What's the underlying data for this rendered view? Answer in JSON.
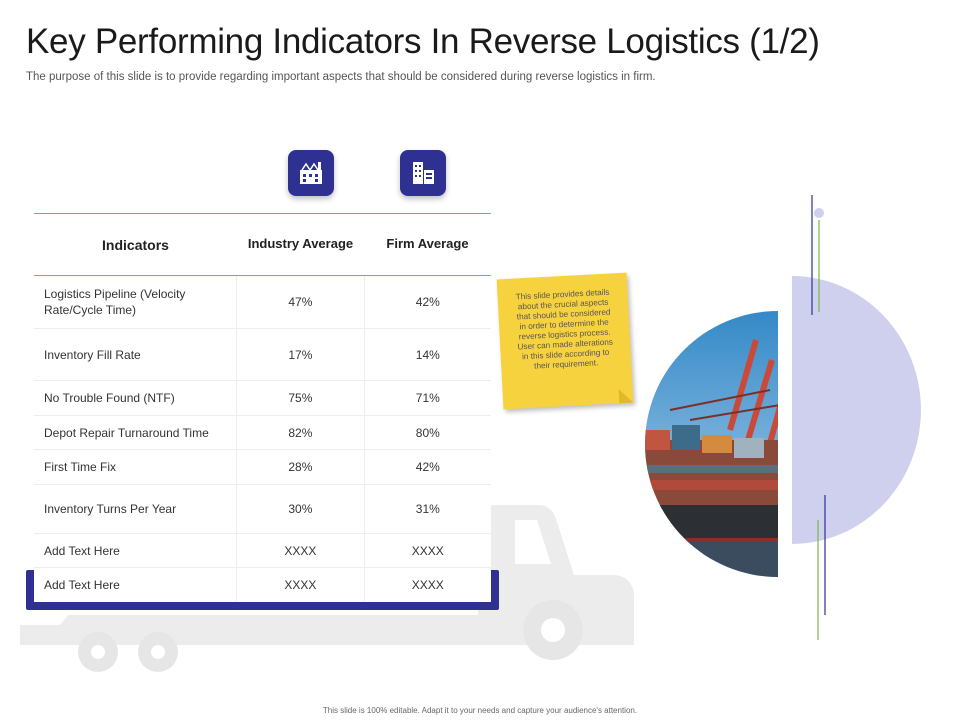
{
  "header": {
    "title": "Key Performing Indicators In Reverse Logistics (1/2)",
    "subtitle": "The purpose of this slide is to provide regarding important aspects that should be considered during reverse logistics in firm."
  },
  "icons": {
    "industry": "factory-icon",
    "firm": "office-building-icon"
  },
  "table": {
    "headers": [
      "Indicators",
      "Industry Average",
      "Firm Average"
    ],
    "rows": [
      {
        "indicator": "Logistics Pipeline (Velocity Rate/Cycle Time)",
        "industry": "47%",
        "firm": "42%"
      },
      {
        "indicator": "Inventory Fill Rate",
        "industry": "17%",
        "firm": "14%"
      },
      {
        "indicator": "No Trouble Found (NTF)",
        "industry": "75%",
        "firm": "71%"
      },
      {
        "indicator": "Depot Repair Turnaround Time",
        "industry": "82%",
        "firm": "80%"
      },
      {
        "indicator": "First Time Fix",
        "industry": "28%",
        "firm": "42%"
      },
      {
        "indicator": "Inventory Turns Per Year",
        "industry": "30%",
        "firm": "31%"
      },
      {
        "indicator": "Add Text Here",
        "industry": "XXXX",
        "firm": "XXXX"
      },
      {
        "indicator": "Add Text Here",
        "industry": "XXXX",
        "firm": "XXXX"
      }
    ]
  },
  "note": {
    "text": "This slide provides details about the crucial aspects that should be considered in order to determine the reverse logistics process. User can made alterations in this slide according to their requirement."
  },
  "colors": {
    "accent_navy": "#2f3192",
    "accent_green": "#7ab648",
    "note_yellow": "#f7d23f",
    "lavender": "#cfd0ee"
  },
  "footer": {
    "text": "This slide is 100% editable. Adapt it to your needs and capture your audience's attention."
  }
}
